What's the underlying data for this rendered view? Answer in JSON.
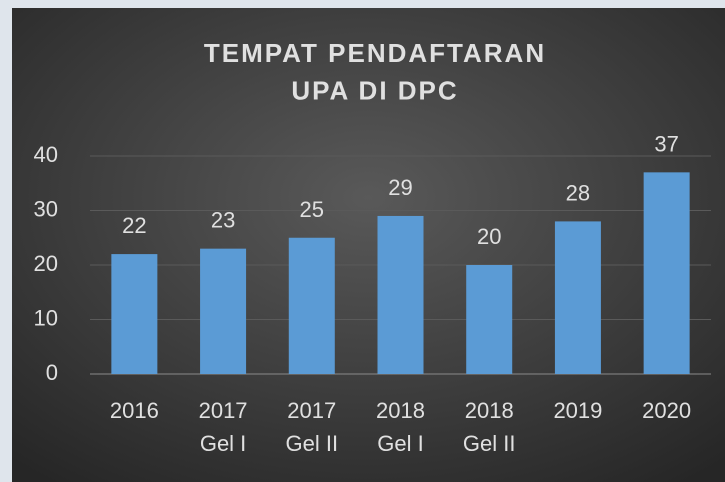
{
  "chart_data": {
    "type": "bar",
    "title": "TEMPAT PENDAFTARAN\nUPA DI DPC",
    "categories": [
      "2016",
      "2017\nGel I",
      "2017\nGel II",
      "2018\nGel I",
      "2018\nGel II",
      "2019",
      "2020"
    ],
    "values": [
      22,
      23,
      25,
      29,
      20,
      28,
      37
    ],
    "color": "#5b9bd5",
    "ylim": [
      0,
      40
    ],
    "yticks": [
      0,
      10,
      20,
      30,
      40
    ],
    "grid": true
  }
}
